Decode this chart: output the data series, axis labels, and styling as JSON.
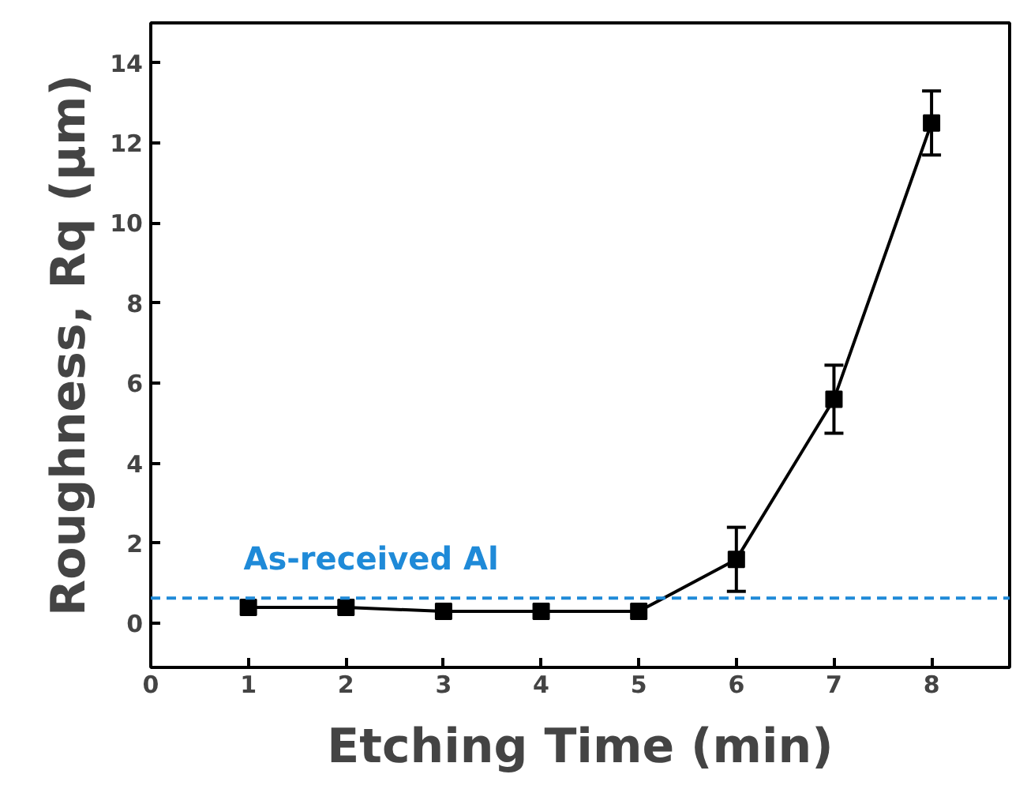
{
  "chart_data": {
    "type": "line",
    "xlabel": "Etching Time (min)",
    "ylabel": "Roughness, Rq (μm)",
    "x": [
      1,
      2,
      3,
      4,
      5,
      6,
      7,
      8
    ],
    "series": [
      {
        "color": "#000000",
        "values": [
          0.4,
          0.4,
          0.3,
          0.3,
          0.3,
          1.6,
          5.6,
          12.5
        ],
        "errors": [
          null,
          null,
          null,
          null,
          null,
          0.8,
          0.85,
          0.8
        ]
      }
    ],
    "xlim": [
      0,
      8.8
    ],
    "xticks": [
      0,
      1,
      2,
      3,
      4,
      5,
      6,
      7,
      8
    ],
    "ylim": [
      -1.1,
      15
    ],
    "yticks": [
      0,
      2,
      4,
      6,
      8,
      10,
      12,
      14
    ],
    "ref_lines": [
      {
        "axis": "y",
        "value": 0.63,
        "label": "As-received Al",
        "color": "#1f8ad8",
        "line_style": "dashed"
      }
    ],
    "marker": "square",
    "grid": false
  }
}
